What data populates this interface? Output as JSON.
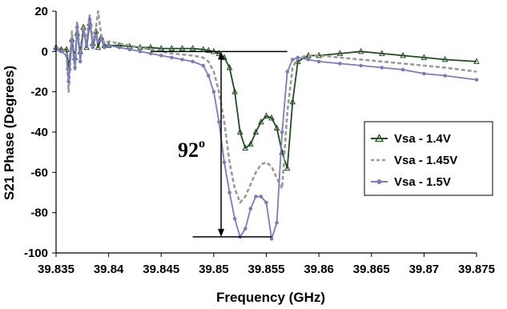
{
  "chart_data": {
    "type": "line",
    "xlabel": "Frequency (GHz)",
    "ylabel": "S21 Phase (Degrees)",
    "xlim": [
      39.835,
      39.875
    ],
    "ylim": [
      -100,
      20
    ],
    "x_ticks": [
      39.835,
      39.84,
      39.845,
      39.85,
      39.855,
      39.86,
      39.865,
      39.87,
      39.875
    ],
    "x_tick_labels": [
      "39.835",
      "39.84",
      "39.845",
      "39.85",
      "39.855",
      "39.86",
      "39.865",
      "39.87",
      "39.875"
    ],
    "y_ticks": [
      20,
      0,
      -20,
      -40,
      -60,
      -80,
      -100
    ],
    "y_tick_labels": [
      "20",
      "0",
      "-20",
      "-40",
      "-60",
      "-80",
      "-100"
    ],
    "grid": false,
    "legend_position": "right",
    "series": [
      {
        "name": "Vsa - 1.4V",
        "color": "#1f4d1f",
        "marker": "triangle",
        "dash": "solid",
        "x": [
          39.835,
          39.8355,
          39.836,
          39.8362,
          39.8365,
          39.8368,
          39.837,
          39.8373,
          39.8376,
          39.8379,
          39.8382,
          39.8385,
          39.8388,
          39.839,
          39.8393,
          39.8396,
          39.84,
          39.841,
          39.842,
          39.843,
          39.844,
          39.845,
          39.846,
          39.847,
          39.848,
          39.849,
          39.8495,
          39.85,
          39.8505,
          39.851,
          39.8515,
          39.852,
          39.8525,
          39.853,
          39.8535,
          39.854,
          39.8545,
          39.855,
          39.8555,
          39.856,
          39.8565,
          39.857,
          39.8575,
          39.858,
          39.859,
          39.86,
          39.862,
          39.864,
          39.866,
          39.868,
          39.87,
          39.872,
          39.875
        ],
        "y": [
          2,
          1,
          1,
          -8,
          6,
          -3,
          9,
          0,
          12,
          2,
          14,
          4,
          10,
          2,
          7,
          3,
          3,
          3,
          2.5,
          2,
          2,
          1.5,
          1.5,
          1.5,
          1.5,
          1,
          0.5,
          0,
          -1,
          -3,
          -8,
          -20,
          -40,
          -48,
          -46,
          -40,
          -35,
          -32,
          -33,
          -38,
          -50,
          -58,
          -25,
          -5,
          -2,
          -2,
          -1,
          0,
          -1,
          -2,
          -3,
          -4,
          -5
        ]
      },
      {
        "name": "Vsa - 1.45V",
        "color": "#9a9a9a",
        "marker": "none",
        "dash": "dashed",
        "x": [
          39.835,
          39.8355,
          39.836,
          39.8362,
          39.8365,
          39.8368,
          39.837,
          39.8373,
          39.8376,
          39.8379,
          39.8382,
          39.8385,
          39.8388,
          39.839,
          39.8393,
          39.8396,
          39.84,
          39.841,
          39.842,
          39.843,
          39.844,
          39.845,
          39.846,
          39.847,
          39.848,
          39.849,
          39.8495,
          39.85,
          39.8505,
          39.851,
          39.8515,
          39.852,
          39.8525,
          39.853,
          39.8535,
          39.854,
          39.8545,
          39.855,
          39.8555,
          39.856,
          39.8565,
          39.857,
          39.8575,
          39.858,
          39.859,
          39.86,
          39.862,
          39.864,
          39.866,
          39.868,
          39.87,
          39.872,
          39.875
        ],
        "y": [
          2,
          1,
          0,
          -20,
          10,
          -10,
          15,
          -3,
          12,
          5,
          18,
          5,
          12,
          20,
          8,
          4,
          5,
          4,
          3,
          2,
          1,
          0,
          -1,
          -1.5,
          -2,
          -3,
          -5,
          -10,
          -20,
          -35,
          -55,
          -68,
          -75,
          -72,
          -66,
          -60,
          -56,
          -55,
          -57,
          -63,
          -68,
          -30,
          -8,
          -3,
          -2,
          -2,
          -3,
          -4,
          -5,
          -6,
          -7,
          -8,
          -10
        ]
      },
      {
        "name": "Vsa - 1.5V",
        "color": "#7b7bbd",
        "marker": "circle",
        "dash": "solid",
        "x": [
          39.835,
          39.8355,
          39.836,
          39.8362,
          39.8365,
          39.8368,
          39.837,
          39.8373,
          39.8376,
          39.8379,
          39.8382,
          39.8385,
          39.8388,
          39.839,
          39.8393,
          39.8396,
          39.84,
          39.841,
          39.842,
          39.843,
          39.844,
          39.845,
          39.846,
          39.847,
          39.848,
          39.849,
          39.8495,
          39.85,
          39.8505,
          39.851,
          39.8515,
          39.852,
          39.8525,
          39.853,
          39.8535,
          39.854,
          39.8545,
          39.855,
          39.8555,
          39.856,
          39.8565,
          39.857,
          39.8575,
          39.858,
          39.859,
          39.86,
          39.862,
          39.864,
          39.866,
          39.868,
          39.87,
          39.872,
          39.875
        ],
        "y": [
          1,
          0,
          -2,
          -15,
          5,
          -8,
          12,
          -5,
          10,
          3,
          16,
          2,
          8,
          5,
          6,
          2,
          3,
          2,
          1,
          0,
          -1,
          -2,
          -3,
          -4,
          -5,
          -7,
          -12,
          -20,
          -35,
          -55,
          -70,
          -83,
          -92,
          -88,
          -78,
          -72,
          -72,
          -75,
          -93,
          -85,
          -40,
          -10,
          -4,
          -3,
          -4,
          -5,
          -6,
          -7,
          -8,
          -9,
          -11,
          -12,
          -14
        ]
      }
    ],
    "annotations": {
      "label_base": "92",
      "label_superscript": "o",
      "ref_line_top_y": 0,
      "ref_line_top_x": [
        39.844,
        39.857
      ],
      "ref_line_bottom_y": -92,
      "ref_line_bottom_x": [
        39.848,
        39.8555
      ],
      "arrow_x": 39.8507
    }
  }
}
